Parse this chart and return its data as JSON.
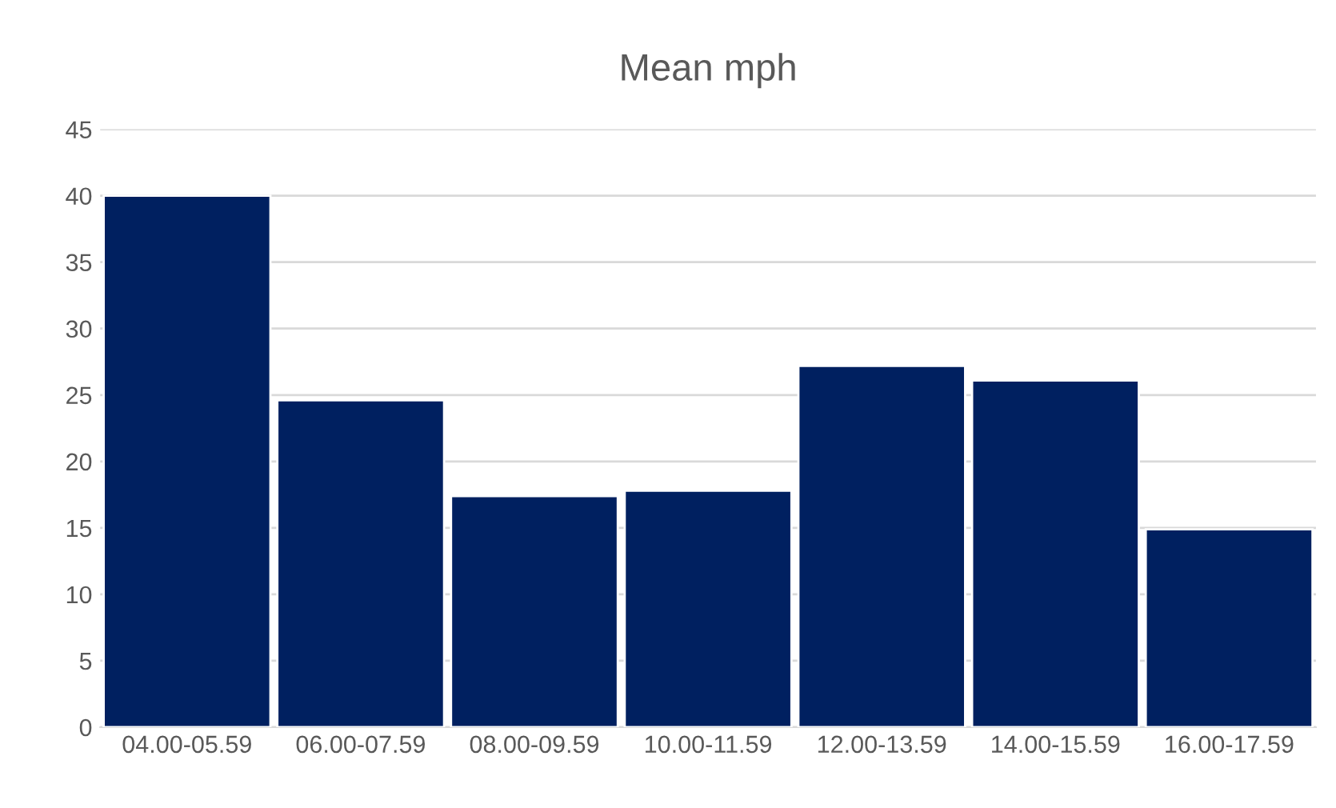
{
  "chart_data": {
    "type": "bar",
    "title": "Mean mph",
    "categories": [
      "04.00-05.59",
      "06.00-07.59",
      "08.00-09.59",
      "10.00-11.59",
      "12.00-13.59",
      "14.00-15.59",
      "16.00-17.59"
    ],
    "values": [
      40.0,
      24.6,
      17.4,
      17.8,
      27.2,
      26.1,
      14.9
    ],
    "color": "#002060",
    "ylim": [
      0,
      45
    ],
    "yticks": [
      0,
      5,
      10,
      15,
      20,
      25,
      30,
      35,
      40,
      45
    ],
    "grid": "y",
    "legend": false
  }
}
